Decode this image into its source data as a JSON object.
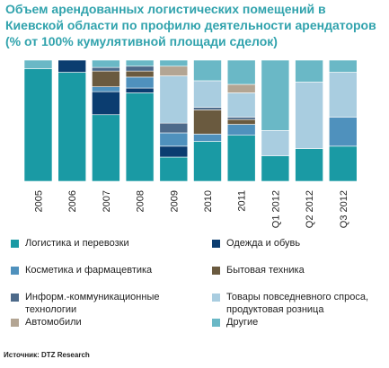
{
  "chart_data": {
    "type": "stacked-bar",
    "title": "Объем арендованных логистических помещений в Киевской области по профилю деятельности арендаторов (% от 100% кумулятивной площади сделок)",
    "ylim": [
      0,
      100
    ],
    "categories": [
      "2005",
      "2006",
      "2007",
      "2008",
      "2009",
      "2010",
      "2011",
      "Q1 2012",
      "Q2 2012",
      "Q3 2012"
    ],
    "series": [
      {
        "name": "Логистика и перевозки",
        "color": "#1a9aa4",
        "values": [
          93,
          90,
          55,
          73,
          20,
          33,
          38,
          21,
          27,
          29
        ]
      },
      {
        "name": "Одежда и обувь",
        "color": "#0b3d70",
        "values": [
          0,
          10,
          19,
          4,
          9,
          0,
          0,
          0,
          0,
          0
        ]
      },
      {
        "name": "Косметика и фармацевтика",
        "color": "#4f91bd",
        "values": [
          0,
          0,
          4,
          9,
          11,
          6,
          9,
          0,
          0,
          24
        ]
      },
      {
        "name": "Бытовая техника",
        "color": "#6a5a3f",
        "values": [
          0,
          0,
          13,
          5,
          0,
          20,
          4,
          0,
          0,
          0
        ]
      },
      {
        "name": "Информ.-коммуникационные технологии",
        "color": "#4d6a8a",
        "values": [
          0,
          0,
          3,
          4,
          8,
          2,
          2,
          0,
          0,
          0
        ]
      },
      {
        "name": "Товары повседневного спроса, продуктовая розница",
        "color": "#a9cde0",
        "values": [
          0,
          0,
          0,
          0,
          39,
          22,
          20,
          21,
          55,
          37
        ]
      },
      {
        "name": "Автомобили",
        "color": "#b3a593",
        "values": [
          0,
          0,
          0,
          0,
          8,
          0,
          7,
          0,
          0,
          0
        ]
      },
      {
        "name": "Другие",
        "color": "#6ab8c6",
        "values": [
          7,
          0,
          6,
          5,
          5,
          17,
          20,
          58,
          18,
          10
        ]
      }
    ]
  },
  "source": "Источник: DTZ Research"
}
